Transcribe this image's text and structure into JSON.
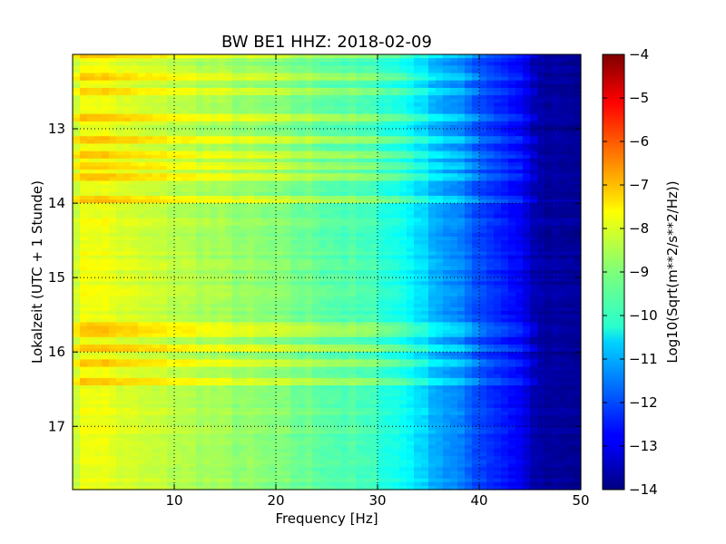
{
  "chart_data": {
    "type": "heatmap",
    "title": "BW BE1 HHZ: 2018-02-09",
    "xlabel": "Frequency [Hz]",
    "ylabel": "Lokalzeit (UTC + 1 Stunde)",
    "xlim": [
      0,
      50
    ],
    "ylim": [
      17.85,
      12.0
    ],
    "x_ticks": [
      10,
      20,
      30,
      40,
      50
    ],
    "x_tick_labels": [
      "10",
      "20",
      "30",
      "40",
      "50"
    ],
    "y_ticks": [
      13,
      14,
      15,
      16,
      17
    ],
    "y_tick_labels": [
      "13",
      "14",
      "15",
      "16",
      "17"
    ],
    "grid": true,
    "colormap": "jet",
    "colorbar": {
      "label": "Log10(Sqrt(m**2/s**2/Hz))",
      "range": [
        -14,
        -4
      ],
      "ticks": [
        -4,
        -5,
        -6,
        -7,
        -8,
        -9,
        -10,
        -11,
        -12,
        -13,
        -14
      ],
      "tick_labels": [
        "−4",
        "−5",
        "−6",
        "−7",
        "−8",
        "−9",
        "−10",
        "−11",
        "−12",
        "−13",
        "−14"
      ]
    },
    "psd_profile": {
      "frequency_hz": [
        0,
        1,
        2,
        4,
        6,
        10,
        15,
        20,
        25,
        30,
        33,
        35,
        38,
        40,
        42,
        44,
        45,
        46,
        50
      ],
      "log10_value": [
        -8.2,
        -8.0,
        -7.8,
        -8.0,
        -8.2,
        -8.4,
        -8.7,
        -9.0,
        -9.3,
        -9.7,
        -10.2,
        -10.8,
        -11.5,
        -12.0,
        -12.4,
        -12.8,
        -13.3,
        -13.7,
        -13.8
      ]
    },
    "bright_bands_hour": [
      12.0,
      12.3,
      12.5,
      12.85,
      13.15,
      13.35,
      13.5,
      13.65,
      13.95,
      15.65,
      15.75,
      15.95,
      16.15,
      16.4
    ]
  }
}
